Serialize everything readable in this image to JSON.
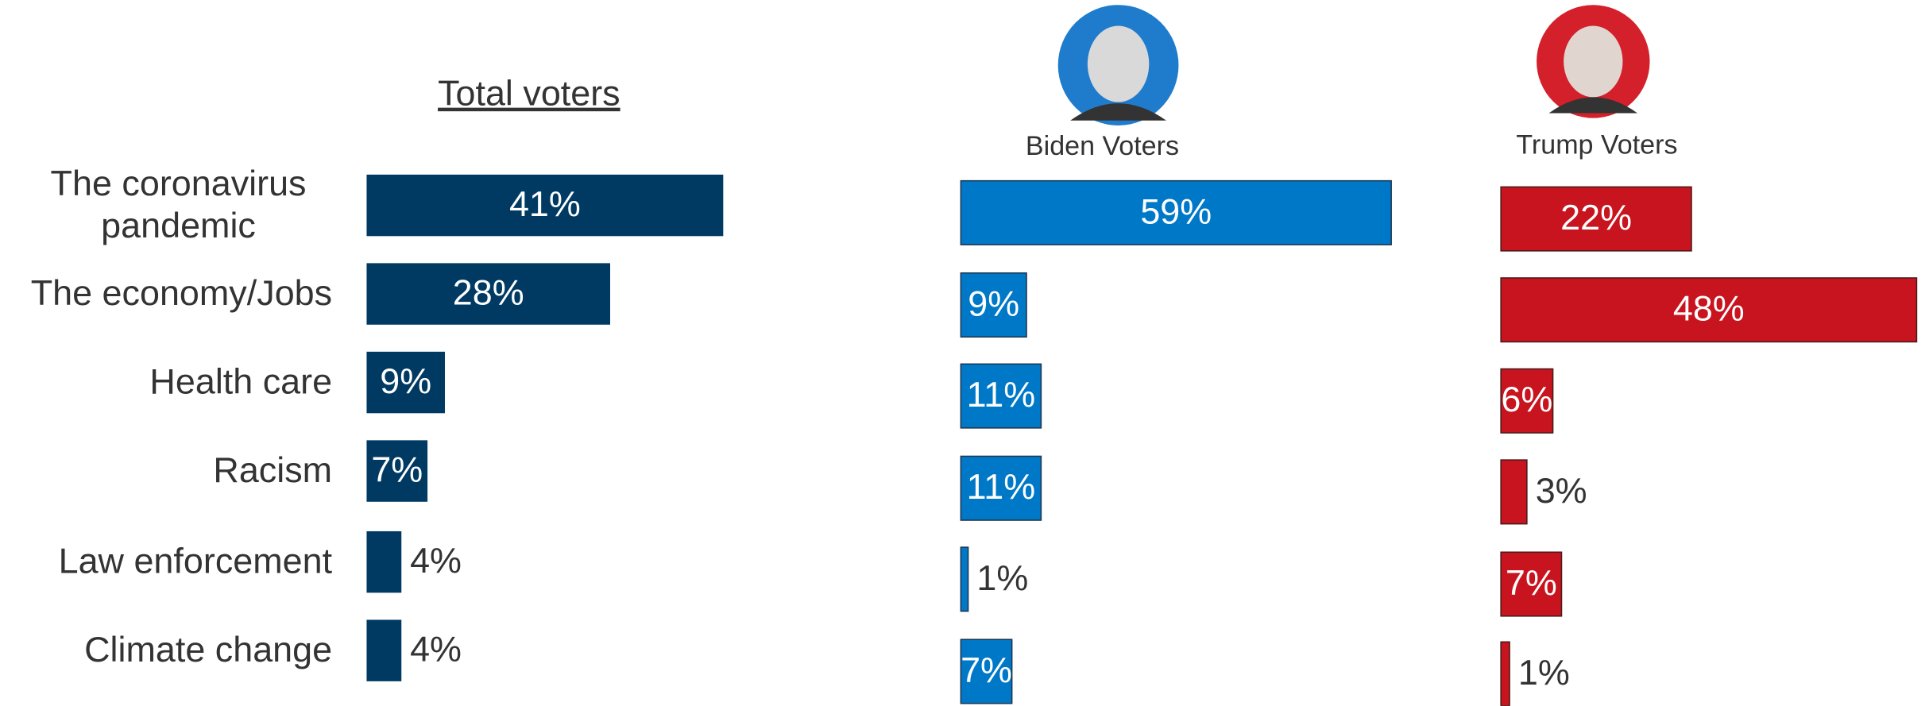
{
  "chart_data": [
    {
      "type": "hbar",
      "title": "Total voters",
      "color": "#003a63",
      "categories": [
        "The coronavirus pandemic",
        "The economy/Jobs",
        "Health care",
        "Racism",
        "Law enforcement",
        "Climate change"
      ],
      "values": [
        41,
        28,
        9,
        7,
        4,
        4
      ],
      "value_labels": [
        "41%",
        "28%",
        "9%",
        "7%",
        "4%",
        "4%"
      ]
    },
    {
      "type": "hbar",
      "title": "Biden Voters",
      "color": "#0078c8",
      "values": [
        59,
        9,
        11,
        11,
        1,
        7
      ],
      "value_labels": [
        "59%",
        "9%",
        "11%",
        "11%",
        "1%",
        "7%"
      ]
    },
    {
      "type": "hbar",
      "title": "Trump Voters",
      "color": "#c8141e",
      "values": [
        22,
        48,
        6,
        3,
        7,
        1
      ],
      "value_labels": [
        "22%",
        "48%",
        "6%",
        "3%",
        "7%",
        "1%"
      ]
    }
  ]
}
